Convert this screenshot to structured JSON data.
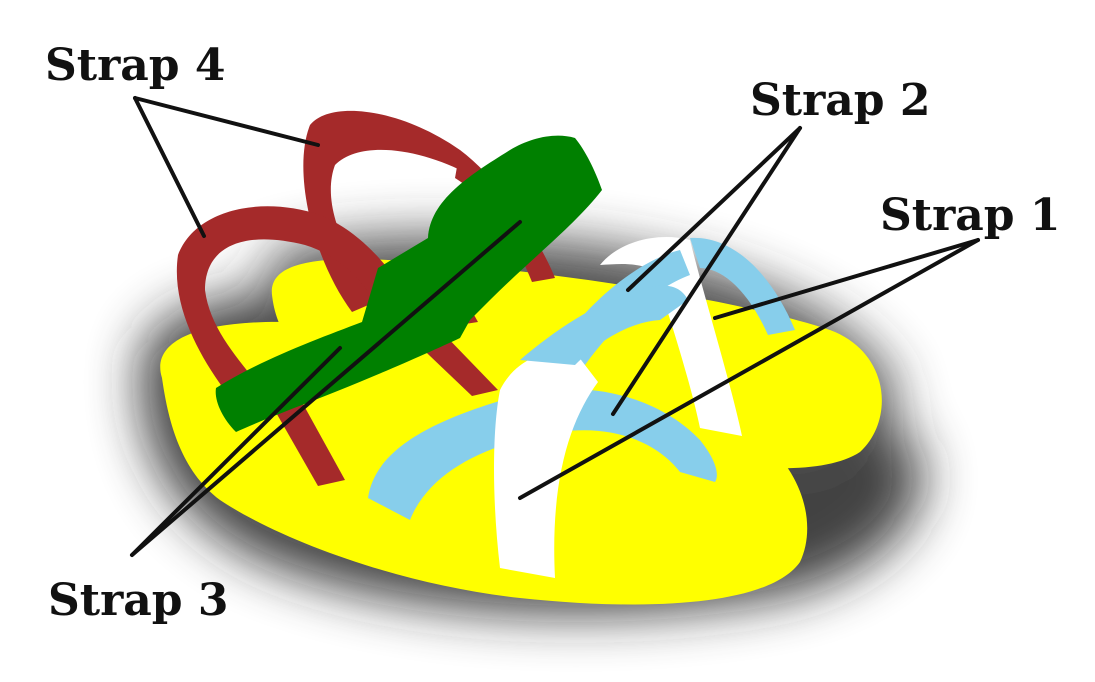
{
  "labels": {
    "strap1": "Strap 1",
    "strap2": "Strap 2",
    "strap3": "Strap 3",
    "strap4": "Strap 4"
  },
  "colors": {
    "sole": "#FFFF00",
    "strap1": "#FFFFFF",
    "strap2": "#87CEEB",
    "strap3": "#008000",
    "strap4": "#A52A2A",
    "leader_lines": "#111111"
  }
}
